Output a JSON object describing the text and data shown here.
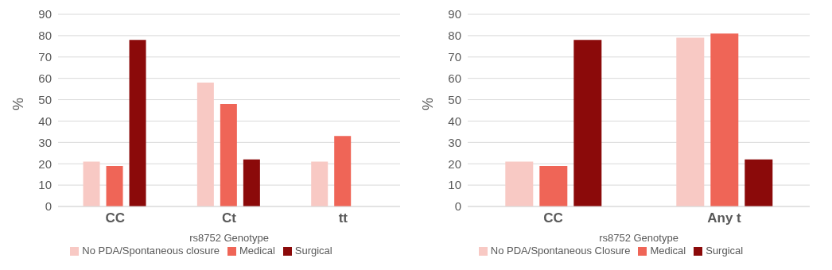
{
  "chart_data": [
    {
      "type": "bar",
      "xlabel": "rs8752 Genotype",
      "ylabel": "%",
      "categories": [
        "CC",
        "Ct",
        "tt"
      ],
      "series": [
        {
          "name": "No PDA/Spontaneous closure",
          "color": "#f8c9c4",
          "values": [
            21,
            58,
            21
          ]
        },
        {
          "name": "Medical",
          "color": "#ef6557",
          "values": [
            19,
            48,
            33
          ]
        },
        {
          "name": "Surgical",
          "color": "#8b0a0a",
          "values": [
            78,
            22,
            null
          ]
        }
      ],
      "ylim": [
        0,
        90
      ],
      "yticks": [
        0,
        10,
        20,
        30,
        40,
        50,
        60,
        70,
        80,
        90
      ],
      "grid": "y",
      "legend": "bottom"
    },
    {
      "type": "bar",
      "xlabel": "rs8752 Genotype",
      "ylabel": "%",
      "categories": [
        "CC",
        "Any t"
      ],
      "series": [
        {
          "name": "No PDA/Spontaneous Closure",
          "color": "#f8c9c4",
          "values": [
            21,
            79
          ]
        },
        {
          "name": "Medical",
          "color": "#ef6557",
          "values": [
            19,
            81
          ]
        },
        {
          "name": "Surgical",
          "color": "#8b0a0a",
          "values": [
            78,
            22
          ]
        }
      ],
      "ylim": [
        0,
        90
      ],
      "yticks": [
        0,
        10,
        20,
        30,
        40,
        50,
        60,
        70,
        80,
        90
      ],
      "grid": "y",
      "legend": "bottom"
    }
  ]
}
